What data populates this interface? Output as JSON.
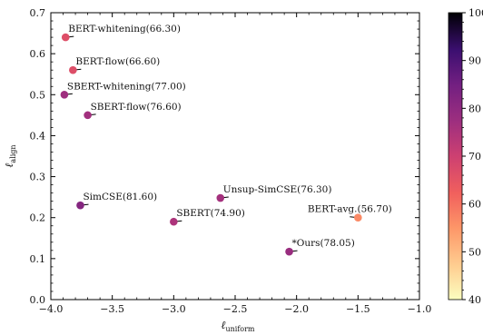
{
  "chart_data": {
    "type": "scatter",
    "xlabel": "ℓ",
    "xlabel_sub": "uniform",
    "ylabel": "ℓ",
    "ylabel_sub": "align",
    "xlim": [
      -4.0,
      -1.0
    ],
    "ylim": [
      0.0,
      0.7
    ],
    "x_ticks": [
      "−4.0",
      "−3.5",
      "−3.0",
      "−2.5",
      "−2.0",
      "−1.5",
      "−1.0"
    ],
    "y_ticks": [
      "0.0",
      "0.1",
      "0.2",
      "0.3",
      "0.4",
      "0.5",
      "0.6",
      "0.7"
    ],
    "x_tick_values": [
      -4.0,
      -3.5,
      -3.0,
      -2.5,
      -2.0,
      -1.5,
      -1.0
    ],
    "y_tick_values": [
      0.0,
      0.1,
      0.2,
      0.3,
      0.4,
      0.5,
      0.6,
      0.7
    ],
    "colorbar": {
      "min": 40,
      "max": 100,
      "ticks": [
        "40",
        "50",
        "60",
        "70",
        "80",
        "90",
        "100"
      ],
      "tick_values": [
        40,
        50,
        60,
        70,
        80,
        90,
        100
      ],
      "colormap": "magma_r"
    },
    "points": [
      {
        "label": "BERT-whitening(66.30)",
        "x": -3.88,
        "y": 0.64,
        "score": 66.3,
        "label_side": "right-up"
      },
      {
        "label": "BERT-flow(66.60)",
        "x": -3.82,
        "y": 0.56,
        "score": 66.6,
        "label_side": "right-up"
      },
      {
        "label": "SBERT-whitening(77.00)",
        "x": -3.89,
        "y": 0.5,
        "score": 77.0,
        "label_side": "right-up"
      },
      {
        "label": "SBERT-flow(76.60)",
        "x": -3.7,
        "y": 0.45,
        "score": 76.6,
        "label_side": "right-up"
      },
      {
        "label": "SimCSE(81.60)",
        "x": -3.76,
        "y": 0.23,
        "score": 81.6,
        "label_side": "right-up"
      },
      {
        "label": "SBERT(74.90)",
        "x": -3.0,
        "y": 0.19,
        "score": 74.9,
        "label_side": "right-up"
      },
      {
        "label": "Unsup-SimCSE(76.30)",
        "x": -2.62,
        "y": 0.248,
        "score": 76.3,
        "label_side": "right-up"
      },
      {
        "label": "BERT-avg.(56.70)",
        "x": -1.5,
        "y": 0.2,
        "score": 56.7,
        "label_side": "left-up"
      },
      {
        "label": "*Ours(78.05)",
        "x": -2.06,
        "y": 0.117,
        "score": 78.05,
        "label_side": "right-up"
      }
    ]
  }
}
